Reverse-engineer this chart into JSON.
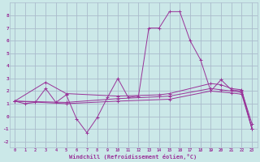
{
  "background_color": "#cbe8e8",
  "grid_color": "#aabbcc",
  "line_color": "#993399",
  "xlabel": "Windchill (Refroidissement éolien,°C)",
  "xlim": [
    -0.5,
    23.5
  ],
  "ylim": [
    -2.5,
    9.0
  ],
  "yticks": [
    -2,
    -1,
    0,
    1,
    2,
    3,
    4,
    5,
    6,
    7,
    8
  ],
  "xtick_labels": [
    "0",
    "1",
    "2",
    "3",
    "4",
    "5",
    "6",
    "7",
    "8",
    "9",
    "10",
    "11",
    "12",
    "13",
    "14",
    "15",
    "16",
    "17",
    "18",
    "19",
    "20",
    "21",
    "22",
    "23"
  ],
  "series": [
    {
      "x": [
        0,
        1,
        2,
        3,
        4,
        5,
        6,
        7,
        8,
        9,
        10,
        11,
        12,
        13,
        14,
        15,
        16,
        17,
        18,
        19,
        20,
        21,
        22,
        23
      ],
      "y": [
        1.2,
        1.0,
        1.1,
        2.2,
        1.1,
        1.7,
        -0.2,
        -1.3,
        -0.1,
        1.5,
        3.0,
        1.5,
        1.6,
        7.0,
        7.0,
        8.3,
        8.3,
        6.0,
        4.5,
        2.0,
        2.9,
        2.1,
        2.0,
        -0.6
      ]
    },
    {
      "x": [
        0,
        3,
        5,
        10,
        14,
        15,
        19,
        20,
        21,
        22,
        23
      ],
      "y": [
        1.2,
        2.7,
        1.8,
        1.6,
        1.7,
        1.8,
        2.6,
        2.5,
        2.2,
        2.1,
        -1.0
      ]
    },
    {
      "x": [
        0,
        5,
        10,
        14,
        15,
        19,
        20,
        21,
        22,
        23
      ],
      "y": [
        1.2,
        1.1,
        1.4,
        1.55,
        1.6,
        2.2,
        2.1,
        2.0,
        1.9,
        -1.0
      ]
    },
    {
      "x": [
        0,
        5,
        10,
        15,
        19,
        21,
        22,
        23
      ],
      "y": [
        1.2,
        1.0,
        1.2,
        1.35,
        2.0,
        1.85,
        1.75,
        -1.0
      ]
    }
  ]
}
